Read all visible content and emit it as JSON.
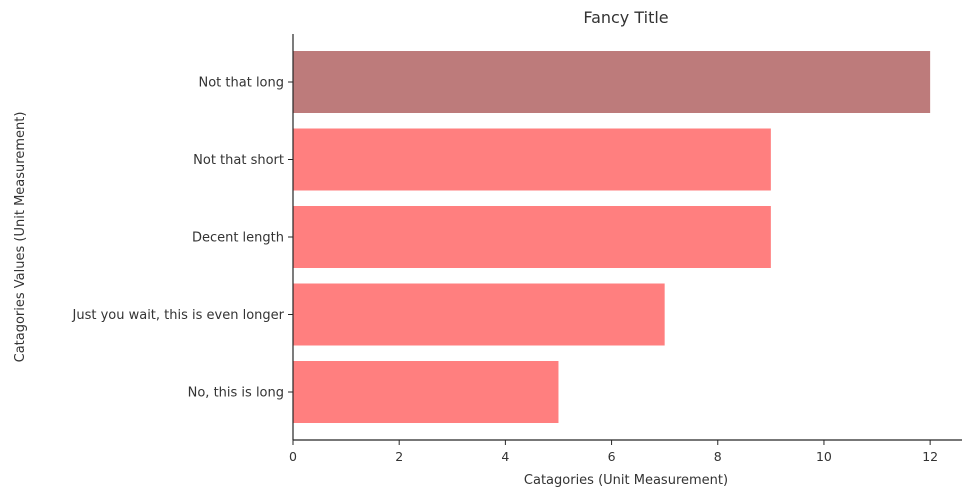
{
  "chart_data": {
    "type": "bar",
    "orientation": "horizontal",
    "title": "Fancy Title",
    "xlabel": "Catagories (Unit Measurement)",
    "ylabel": "Catagories Values (Unit Measurement)",
    "categories": [
      "Not that long",
      "Not that short",
      "Decent length",
      "Just you wait, this is even longer",
      "No, this is long"
    ],
    "values": [
      12,
      9,
      9,
      7,
      5
    ],
    "bar_colors": [
      "#bd7b7b",
      "#ff7f7f",
      "#ff7f7f",
      "#ff7f7f",
      "#ff7f7f"
    ],
    "xlim": [
      0,
      12.6
    ],
    "xticks": [
      0,
      2,
      4,
      6,
      8,
      10,
      12
    ],
    "grid": false,
    "legend": "none"
  }
}
